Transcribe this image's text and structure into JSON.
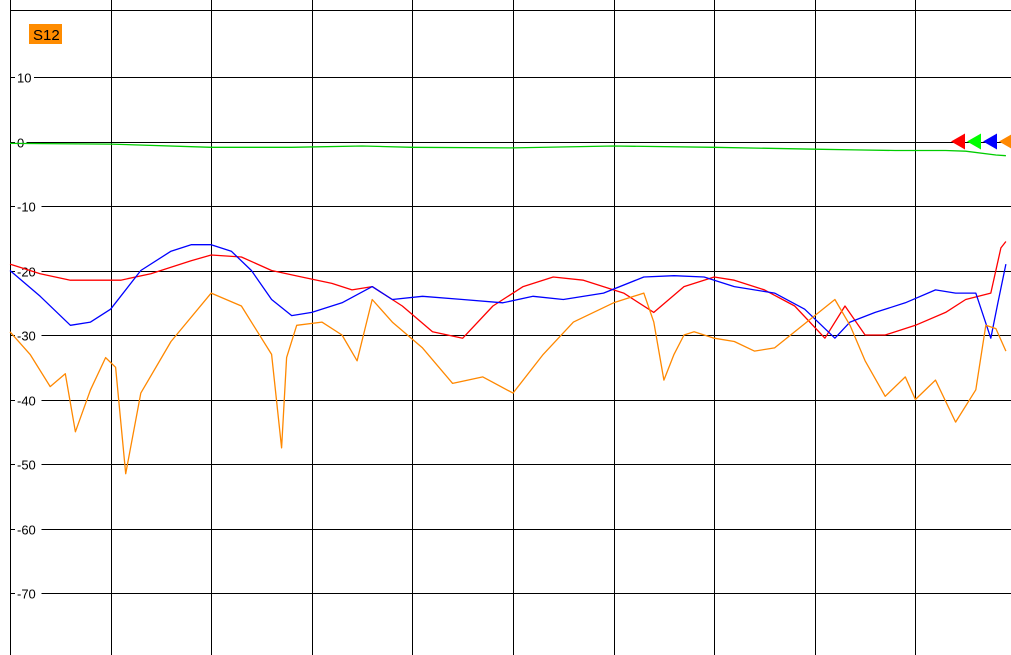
{
  "chart_data": {
    "type": "line",
    "title": "S12",
    "title_badge_color": "#ff8c00",
    "xlabel": "",
    "ylabel": "",
    "ylim": [
      -80,
      15
    ],
    "yticks": [
      10,
      0,
      -10,
      -20,
      -30,
      -40,
      -50,
      -60,
      -70
    ],
    "ytick_labels": [
      "10",
      "0",
      "-10",
      "-20",
      "-30",
      "-40",
      "-50",
      "-60",
      "-70"
    ],
    "x_divisions": 10,
    "xlim": [
      0,
      10
    ],
    "grid": true,
    "series": [
      {
        "color": "#00cc00",
        "x": [
          0,
          1,
          2,
          2.8,
          3.5,
          4,
          5,
          6,
          7,
          8,
          8.4,
          8.8,
          9.3,
          9.5,
          9.8,
          9.9
        ],
        "y": [
          -0.3,
          -0.4,
          -0.9,
          -0.9,
          -0.7,
          -0.9,
          -1.0,
          -0.7,
          -0.9,
          -1.2,
          -1.3,
          -1.4,
          -1.4,
          -1.5,
          -2.1,
          -2.2
        ]
      },
      {
        "color": "#ff0000",
        "x": [
          0,
          0.3,
          0.6,
          0.8,
          1.1,
          1.4,
          1.8,
          2.0,
          2.3,
          2.6,
          2.9,
          3.2,
          3.4,
          3.6,
          3.9,
          4.2,
          4.5,
          4.8,
          5.1,
          5.4,
          5.7,
          6.1,
          6.4,
          6.7,
          7.0,
          7.2,
          7.5,
          7.8,
          8.1,
          8.3,
          8.5,
          8.7,
          9.0,
          9.3,
          9.5,
          9.75,
          9.85,
          9.9
        ],
        "y": [
          -19.0,
          -20.5,
          -21.5,
          -21.5,
          -21.5,
          -20.5,
          -18.5,
          -17.6,
          -17.9,
          -20.0,
          -21.0,
          -22.0,
          -23.0,
          -22.5,
          -25.5,
          -29.5,
          -30.5,
          -25.5,
          -22.5,
          -21.0,
          -21.5,
          -23.5,
          -26.5,
          -22.5,
          -21.0,
          -21.5,
          -23.0,
          -25.5,
          -30.5,
          -25.5,
          -30.0,
          -30.0,
          -28.5,
          -26.5,
          -24.5,
          -23.5,
          -16.5,
          -15.5
        ]
      },
      {
        "color": "#0000ff",
        "x": [
          0,
          0.3,
          0.6,
          0.8,
          1.0,
          1.3,
          1.6,
          1.8,
          2.0,
          2.2,
          2.4,
          2.6,
          2.8,
          3.0,
          3.3,
          3.6,
          3.8,
          4.1,
          4.5,
          4.9,
          5.2,
          5.5,
          5.9,
          6.3,
          6.6,
          6.9,
          7.2,
          7.6,
          7.9,
          8.2,
          8.35,
          8.6,
          8.9,
          9.2,
          9.4,
          9.6,
          9.75,
          9.82,
          9.9
        ],
        "y": [
          -20.0,
          -24.0,
          -28.5,
          -28.0,
          -26.0,
          -20.0,
          -17.0,
          -16.0,
          -16.0,
          -17.0,
          -20.0,
          -24.5,
          -27.0,
          -26.5,
          -25.0,
          -22.5,
          -24.5,
          -24.0,
          -24.5,
          -25.0,
          -24.0,
          -24.5,
          -23.5,
          -21.0,
          -20.8,
          -21.0,
          -22.5,
          -23.5,
          -26.0,
          -30.5,
          -28.0,
          -26.5,
          -25.0,
          -23.0,
          -23.5,
          -23.5,
          -30.5,
          -25.0,
          -19.0
        ]
      },
      {
        "color": "#ff8800",
        "x": [
          0,
          0.2,
          0.4,
          0.55,
          0.65,
          0.8,
          0.95,
          1.05,
          1.15,
          1.3,
          1.6,
          2.0,
          2.3,
          2.6,
          2.7,
          2.75,
          2.85,
          3.1,
          3.3,
          3.45,
          3.6,
          3.8,
          4.1,
          4.4,
          4.7,
          5.0,
          5.3,
          5.6,
          6.0,
          6.3,
          6.4,
          6.5,
          6.6,
          6.7,
          6.8,
          7.0,
          7.2,
          7.4,
          7.6,
          8.0,
          8.2,
          8.35,
          8.5,
          8.7,
          8.9,
          9.0,
          9.2,
          9.4,
          9.6,
          9.7,
          9.8,
          9.9
        ],
        "y": [
          -29.5,
          -33.0,
          -38.0,
          -36.0,
          -45.0,
          -38.5,
          -33.5,
          -35.0,
          -51.5,
          -39.0,
          -31.0,
          -23.5,
          -25.5,
          -33.0,
          -47.5,
          -33.5,
          -28.5,
          -28.0,
          -30.0,
          -34.0,
          -24.5,
          -28.0,
          -32.0,
          -37.5,
          -36.5,
          -39.0,
          -33.0,
          -28.0,
          -25.0,
          -23.5,
          -28.0,
          -37.0,
          -33.0,
          -30.0,
          -29.5,
          -30.5,
          -31.0,
          -32.5,
          -32.0,
          -27.0,
          -24.5,
          -28.5,
          -34.0,
          -39.5,
          -36.5,
          -40.0,
          -37.0,
          -43.5,
          -38.5,
          -28.5,
          -29.0,
          -32.5
        ]
      }
    ],
    "markers": [
      {
        "color": "#ff0000"
      },
      {
        "color": "#00ff00"
      },
      {
        "color": "#0000ff"
      },
      {
        "color": "#ff8800"
      }
    ]
  }
}
